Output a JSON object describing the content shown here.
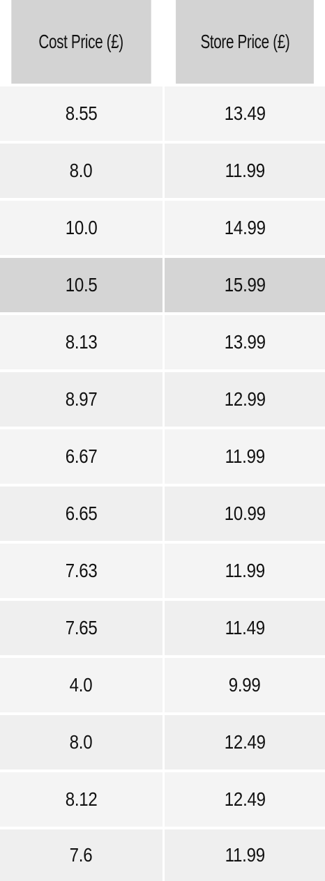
{
  "table": {
    "headers": [
      "Cost Price (£)",
      "Store Price (£)"
    ],
    "rows": [
      {
        "cost": "8.55",
        "store": "13.49"
      },
      {
        "cost": "8.0",
        "store": "11.99"
      },
      {
        "cost": "10.0",
        "store": "14.99"
      },
      {
        "cost": "10.5",
        "store": "15.99"
      },
      {
        "cost": "8.13",
        "store": "13.99"
      },
      {
        "cost": "8.97",
        "store": "12.99"
      },
      {
        "cost": "6.67",
        "store": "11.99"
      },
      {
        "cost": "6.65",
        "store": "10.99"
      },
      {
        "cost": "7.63",
        "store": "11.99"
      },
      {
        "cost": "7.65",
        "store": "11.49"
      },
      {
        "cost": "4.0",
        "store": "9.99"
      },
      {
        "cost": "8.0",
        "store": "12.49"
      },
      {
        "cost": "8.12",
        "store": "12.49"
      },
      {
        "cost": "7.6",
        "store": "11.99"
      }
    ],
    "highlighted_row": 3
  },
  "colors": {
    "header_bg": "#d3d3d3",
    "row_bg": "#f4f4f4",
    "row_alt_bg": "#efefef",
    "highlight_bg": "#d5d5d5",
    "text": "#111111"
  }
}
